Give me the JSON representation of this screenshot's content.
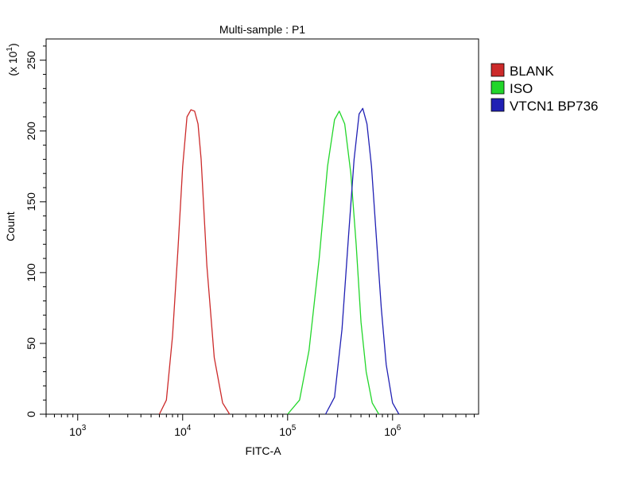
{
  "chart_data": {
    "type": "line",
    "title": "Multi-sample : P1",
    "xlabel": "FITC-A",
    "ylabel": "Count",
    "y_multiplier_label": "(x 10",
    "y_multiplier_exp": "1",
    "y_multiplier_close": ")",
    "x_scale": "log",
    "xlim": [
      500,
      6600000
    ],
    "ylim": [
      0,
      265
    ],
    "x_ticks": [
      {
        "value": 1000,
        "base": "10",
        "exp": "3"
      },
      {
        "value": 10000,
        "base": "10",
        "exp": "4"
      },
      {
        "value": 100000,
        "base": "10",
        "exp": "5"
      },
      {
        "value": 1000000,
        "base": "10",
        "exp": "6"
      }
    ],
    "y_ticks": [
      0,
      50,
      100,
      150,
      200,
      250
    ],
    "grid": false,
    "legend_position": "right",
    "series": [
      {
        "name": "BLANK",
        "color": "#cc2a2a",
        "x": [
          6000,
          7000,
          8000,
          9000,
          10000,
          11000,
          12000,
          13000,
          14000,
          15000,
          17000,
          20000,
          24000,
          28000
        ],
        "y": [
          0,
          10,
          55,
          115,
          175,
          210,
          215,
          214,
          205,
          180,
          105,
          40,
          8,
          0
        ]
      },
      {
        "name": "ISO",
        "color": "#22d62a",
        "x": [
          100000,
          130000,
          160000,
          200000,
          240000,
          280000,
          310000,
          350000,
          400000,
          450000,
          500000,
          560000,
          640000,
          740000
        ],
        "y": [
          0,
          10,
          45,
          110,
          175,
          208,
          214,
          205,
          170,
          120,
          65,
          30,
          8,
          0
        ]
      },
      {
        "name": "VTCN1 BP736",
        "color": "#2020b4",
        "x": [
          230000,
          280000,
          330000,
          380000,
          430000,
          480000,
          520000,
          570000,
          630000,
          700000,
          780000,
          870000,
          1000000,
          1150000
        ],
        "y": [
          0,
          12,
          60,
          125,
          180,
          212,
          216,
          205,
          175,
          125,
          75,
          35,
          8,
          0
        ]
      }
    ]
  }
}
